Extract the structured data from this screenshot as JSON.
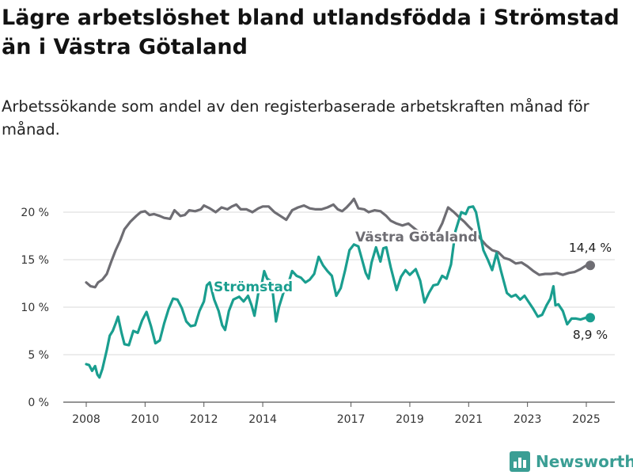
{
  "title": "Lägre arbetslöshet bland utlandsfödda i Strömstad än i Västra Götaland",
  "subtitle": "Arbetssökande som andel av den registerbaserade arbetskraften månad för månad.",
  "brand": {
    "name": "Newsworthy",
    "icon": "bar-chart-logo-icon",
    "color": "#3a9e94"
  },
  "chart_data": {
    "type": "line",
    "xlim": [
      2007.92,
      2025.25
    ],
    "ylim": [
      0,
      21.5
    ],
    "y_ticks": [
      {
        "value": 0,
        "label": "0 %"
      },
      {
        "value": 5,
        "label": "5 %"
      },
      {
        "value": 10,
        "label": "10 %"
      },
      {
        "value": 15,
        "label": "15 %"
      },
      {
        "value": 20,
        "label": "20 %"
      }
    ],
    "x_ticks": [
      {
        "value": 2008,
        "label": "2008"
      },
      {
        "value": 2010,
        "label": "2010"
      },
      {
        "value": 2012,
        "label": "2012"
      },
      {
        "value": 2014,
        "label": "2014"
      },
      {
        "value": 2017,
        "label": "2017"
      },
      {
        "value": 2019,
        "label": "2019"
      },
      {
        "value": 2021,
        "label": "2021"
      },
      {
        "value": 2023,
        "label": "2023"
      },
      {
        "value": 2025,
        "label": "2025"
      }
    ],
    "grid": "horizontal",
    "series": [
      {
        "name": "Västra Götaland",
        "color": "#6e6d73",
        "end_label": "14,4 %",
        "points": [
          [
            2008.0,
            12.6
          ],
          [
            2008.15,
            12.2
          ],
          [
            2008.3,
            12.1
          ],
          [
            2008.4,
            12.6
          ],
          [
            2008.55,
            12.9
          ],
          [
            2008.7,
            13.5
          ],
          [
            2008.85,
            14.8
          ],
          [
            2009.0,
            16.0
          ],
          [
            2009.15,
            17.0
          ],
          [
            2009.3,
            18.2
          ],
          [
            2009.5,
            19.0
          ],
          [
            2009.7,
            19.6
          ],
          [
            2009.85,
            20.0
          ],
          [
            2010.0,
            20.1
          ],
          [
            2010.15,
            19.7
          ],
          [
            2010.3,
            19.8
          ],
          [
            2010.5,
            19.6
          ],
          [
            2010.65,
            19.4
          ],
          [
            2010.85,
            19.3
          ],
          [
            2011.0,
            20.2
          ],
          [
            2011.2,
            19.6
          ],
          [
            2011.35,
            19.7
          ],
          [
            2011.5,
            20.2
          ],
          [
            2011.7,
            20.1
          ],
          [
            2011.9,
            20.3
          ],
          [
            2012.0,
            20.7
          ],
          [
            2012.2,
            20.4
          ],
          [
            2012.4,
            20.0
          ],
          [
            2012.6,
            20.5
          ],
          [
            2012.8,
            20.3
          ],
          [
            2012.95,
            20.6
          ],
          [
            2013.1,
            20.8
          ],
          [
            2013.25,
            20.3
          ],
          [
            2013.45,
            20.3
          ],
          [
            2013.65,
            20.0
          ],
          [
            2013.85,
            20.4
          ],
          [
            2014.0,
            20.6
          ],
          [
            2014.2,
            20.6
          ],
          [
            2014.4,
            20.0
          ],
          [
            2014.6,
            19.6
          ],
          [
            2014.8,
            19.2
          ],
          [
            2015.0,
            20.2
          ],
          [
            2015.2,
            20.5
          ],
          [
            2015.4,
            20.7
          ],
          [
            2015.6,
            20.4
          ],
          [
            2015.8,
            20.3
          ],
          [
            2016.0,
            20.3
          ],
          [
            2016.2,
            20.5
          ],
          [
            2016.4,
            20.8
          ],
          [
            2016.55,
            20.3
          ],
          [
            2016.7,
            20.1
          ],
          [
            2016.85,
            20.5
          ],
          [
            2017.0,
            21.0
          ],
          [
            2017.1,
            21.4
          ],
          [
            2017.25,
            20.4
          ],
          [
            2017.45,
            20.3
          ],
          [
            2017.6,
            20.0
          ],
          [
            2017.8,
            20.2
          ],
          [
            2018.0,
            20.1
          ],
          [
            2018.2,
            19.6
          ],
          [
            2018.35,
            19.1
          ],
          [
            2018.55,
            18.8
          ],
          [
            2018.75,
            18.6
          ],
          [
            2018.95,
            18.8
          ],
          [
            2019.15,
            18.3
          ],
          [
            2019.35,
            17.8
          ],
          [
            2019.55,
            17.3
          ],
          [
            2019.75,
            17.4
          ],
          [
            2019.95,
            17.9
          ],
          [
            2020.1,
            18.8
          ],
          [
            2020.3,
            20.5
          ],
          [
            2020.5,
            20.0
          ],
          [
            2020.7,
            19.4
          ],
          [
            2020.85,
            19.0
          ],
          [
            2021.0,
            18.5
          ],
          [
            2021.2,
            17.9
          ],
          [
            2021.4,
            17.2
          ],
          [
            2021.6,
            16.5
          ],
          [
            2021.8,
            16.0
          ],
          [
            2022.0,
            15.8
          ],
          [
            2022.2,
            15.2
          ],
          [
            2022.4,
            15.0
          ],
          [
            2022.6,
            14.6
          ],
          [
            2022.8,
            14.7
          ],
          [
            2023.0,
            14.3
          ],
          [
            2023.2,
            13.8
          ],
          [
            2023.4,
            13.4
          ],
          [
            2023.6,
            13.5
          ],
          [
            2023.8,
            13.5
          ],
          [
            2024.0,
            13.6
          ],
          [
            2024.2,
            13.4
          ],
          [
            2024.4,
            13.6
          ],
          [
            2024.6,
            13.7
          ],
          [
            2024.8,
            14.0
          ],
          [
            2025.0,
            14.4
          ],
          [
            2025.2,
            14.4
          ]
        ]
      },
      {
        "name": "Strömstad",
        "color": "#1a9e8f",
        "end_label": "8,9 %",
        "points": [
          [
            2008.0,
            4.0
          ],
          [
            2008.1,
            3.9
          ],
          [
            2008.2,
            3.3
          ],
          [
            2008.3,
            3.8
          ],
          [
            2008.38,
            2.9
          ],
          [
            2008.45,
            2.6
          ],
          [
            2008.55,
            3.5
          ],
          [
            2008.7,
            5.5
          ],
          [
            2008.8,
            7.0
          ],
          [
            2008.9,
            7.5
          ],
          [
            2009.0,
            8.3
          ],
          [
            2009.08,
            9.0
          ],
          [
            2009.2,
            7.3
          ],
          [
            2009.3,
            6.1
          ],
          [
            2009.45,
            6.0
          ],
          [
            2009.6,
            7.5
          ],
          [
            2009.75,
            7.3
          ],
          [
            2009.9,
            8.6
          ],
          [
            2010.05,
            9.5
          ],
          [
            2010.2,
            8.0
          ],
          [
            2010.35,
            6.2
          ],
          [
            2010.5,
            6.5
          ],
          [
            2010.65,
            8.3
          ],
          [
            2010.8,
            9.8
          ],
          [
            2010.95,
            10.9
          ],
          [
            2011.1,
            10.8
          ],
          [
            2011.25,
            9.9
          ],
          [
            2011.4,
            8.5
          ],
          [
            2011.55,
            8.0
          ],
          [
            2011.7,
            8.1
          ],
          [
            2011.85,
            9.6
          ],
          [
            2012.0,
            10.6
          ],
          [
            2012.1,
            12.3
          ],
          [
            2012.2,
            12.6
          ],
          [
            2012.35,
            10.8
          ],
          [
            2012.5,
            9.6
          ],
          [
            2012.62,
            8.1
          ],
          [
            2012.72,
            7.6
          ],
          [
            2012.85,
            9.6
          ],
          [
            2013.0,
            10.8
          ],
          [
            2013.2,
            11.1
          ],
          [
            2013.35,
            10.6
          ],
          [
            2013.5,
            11.2
          ],
          [
            2013.62,
            10.2
          ],
          [
            2013.72,
            9.1
          ],
          [
            2013.85,
            11.5
          ],
          [
            2013.97,
            12.5
          ],
          [
            2014.05,
            13.8
          ],
          [
            2014.15,
            13.0
          ],
          [
            2014.3,
            12.7
          ],
          [
            2014.38,
            10.5
          ],
          [
            2014.45,
            8.5
          ],
          [
            2014.55,
            10.0
          ],
          [
            2014.7,
            11.5
          ],
          [
            2014.85,
            12.3
          ],
          [
            2015.0,
            13.8
          ],
          [
            2015.15,
            13.3
          ],
          [
            2015.3,
            13.1
          ],
          [
            2015.45,
            12.6
          ],
          [
            2015.6,
            12.9
          ],
          [
            2015.75,
            13.5
          ],
          [
            2015.9,
            15.3
          ],
          [
            2016.05,
            14.4
          ],
          [
            2016.2,
            13.8
          ],
          [
            2016.35,
            13.3
          ],
          [
            2016.5,
            11.2
          ],
          [
            2016.65,
            12.0
          ],
          [
            2016.8,
            13.9
          ],
          [
            2016.95,
            16.0
          ],
          [
            2017.1,
            16.6
          ],
          [
            2017.25,
            16.4
          ],
          [
            2017.35,
            15.3
          ],
          [
            2017.5,
            13.6
          ],
          [
            2017.6,
            13.0
          ],
          [
            2017.7,
            14.7
          ],
          [
            2017.85,
            16.3
          ],
          [
            2018.0,
            14.8
          ],
          [
            2018.1,
            16.2
          ],
          [
            2018.2,
            16.3
          ],
          [
            2018.35,
            14.2
          ],
          [
            2018.55,
            11.8
          ],
          [
            2018.7,
            13.2
          ],
          [
            2018.85,
            13.9
          ],
          [
            2019.0,
            13.4
          ],
          [
            2019.2,
            14.0
          ],
          [
            2019.35,
            12.8
          ],
          [
            2019.5,
            10.5
          ],
          [
            2019.65,
            11.5
          ],
          [
            2019.8,
            12.3
          ],
          [
            2019.95,
            12.4
          ],
          [
            2020.1,
            13.3
          ],
          [
            2020.25,
            13.0
          ],
          [
            2020.4,
            14.5
          ],
          [
            2020.55,
            18.0
          ],
          [
            2020.75,
            20.0
          ],
          [
            2020.9,
            19.8
          ],
          [
            2021.0,
            20.5
          ],
          [
            2021.15,
            20.6
          ],
          [
            2021.25,
            20.0
          ],
          [
            2021.35,
            18.4
          ],
          [
            2021.5,
            16.0
          ],
          [
            2021.65,
            15.0
          ],
          [
            2021.8,
            13.9
          ],
          [
            2021.95,
            15.7
          ],
          [
            2022.1,
            13.8
          ],
          [
            2022.3,
            11.5
          ],
          [
            2022.45,
            11.1
          ],
          [
            2022.6,
            11.3
          ],
          [
            2022.75,
            10.8
          ],
          [
            2022.9,
            11.2
          ],
          [
            2023.05,
            10.5
          ],
          [
            2023.2,
            9.8
          ],
          [
            2023.35,
            9.0
          ],
          [
            2023.5,
            9.2
          ],
          [
            2023.65,
            10.2
          ],
          [
            2023.78,
            10.9
          ],
          [
            2023.88,
            12.2
          ],
          [
            2023.95,
            10.2
          ],
          [
            2024.05,
            10.3
          ],
          [
            2024.2,
            9.6
          ],
          [
            2024.35,
            8.2
          ],
          [
            2024.5,
            8.8
          ],
          [
            2024.65,
            8.8
          ],
          [
            2024.8,
            8.7
          ],
          [
            2025.0,
            8.9
          ],
          [
            2025.2,
            8.9
          ]
        ]
      }
    ]
  }
}
